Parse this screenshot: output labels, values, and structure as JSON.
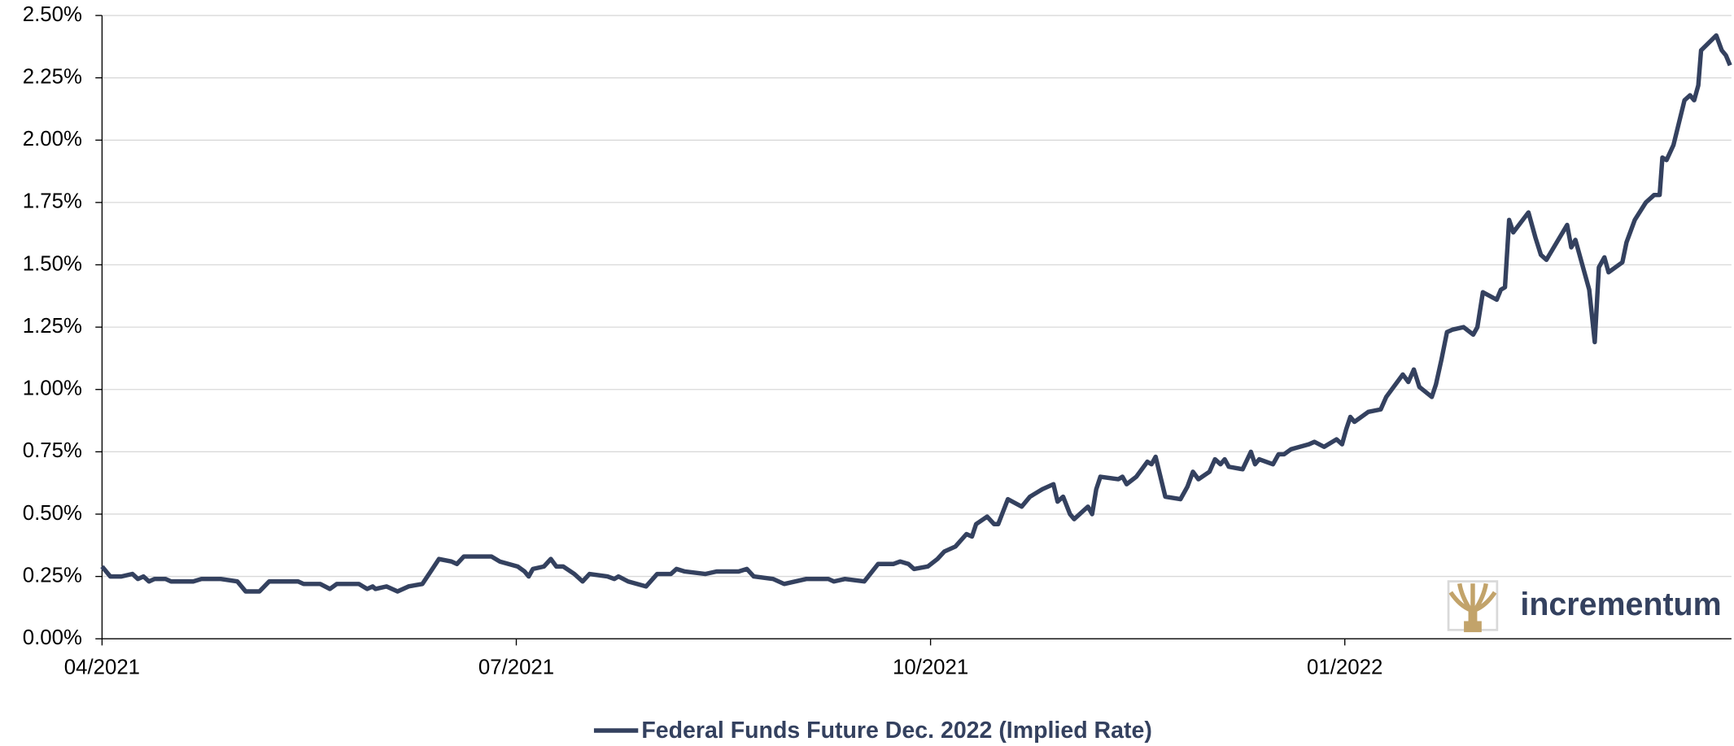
{
  "chart_data": {
    "type": "line",
    "x": [
      0.0,
      0.06,
      0.14,
      0.22,
      0.26,
      0.3,
      0.34,
      0.38,
      0.46,
      0.5,
      0.54,
      0.66,
      0.72,
      0.86,
      0.98,
      1.04,
      1.14,
      1.21,
      1.42,
      1.46,
      1.58,
      1.65,
      1.7,
      1.86,
      1.92,
      1.96,
      1.98,
      2.06,
      2.14,
      2.22,
      2.32,
      2.38,
      2.44,
      2.53,
      2.57,
      2.62,
      2.7,
      2.82,
      2.88,
      3.01,
      3.06,
      3.09,
      3.12,
      3.2,
      3.25,
      3.29,
      3.34,
      3.42,
      3.48,
      3.53,
      3.66,
      3.71,
      3.74,
      3.81,
      3.94,
      4.02,
      4.12,
      4.16,
      4.22,
      4.37,
      4.45,
      4.61,
      4.67,
      4.72,
      4.86,
      4.94,
      5.1,
      5.16,
      5.26,
      5.3,
      5.38,
      5.52,
      5.62,
      5.73,
      5.78,
      5.84,
      5.88,
      5.98,
      6.05,
      6.1,
      6.18,
      6.26,
      6.3,
      6.33,
      6.41,
      6.46,
      6.49,
      6.56,
      6.66,
      6.72,
      6.81,
      6.89,
      6.92,
      6.96,
      7.01,
      7.04,
      7.1,
      7.14,
      7.17,
      7.2,
      7.23,
      7.36,
      7.39,
      7.42,
      7.49,
      7.57,
      7.6,
      7.63,
      7.7,
      7.81,
      7.86,
      7.9,
      7.94,
      8.02,
      8.06,
      8.1,
      8.13,
      8.16,
      8.26,
      8.32,
      8.35,
      8.38,
      8.48,
      8.52,
      8.56,
      8.61,
      8.74,
      8.78,
      8.85,
      8.94,
      8.98,
      9.01,
      9.04,
      9.07,
      9.17,
      9.26,
      9.3,
      9.42,
      9.46,
      9.5,
      9.54,
      9.63,
      9.66,
      9.7,
      9.74,
      9.78,
      9.86,
      9.93,
      9.96,
      10.0,
      10.1,
      10.13,
      10.16,
      10.19,
      10.22,
      10.33,
      10.38,
      10.42,
      10.46,
      10.61,
      10.64,
      10.67,
      10.77,
      10.81,
      10.84,
      10.88,
      10.91,
      11.01,
      11.04,
      11.1,
      11.18,
      11.24,
      11.28,
      11.3,
      11.33,
      11.38,
      11.46,
      11.5,
      11.53,
      11.56,
      11.58,
      11.69,
      11.73,
      11.76,
      11.79
    ],
    "series": [
      {
        "name": "Federal Funds Future Dec. 2022 (Implied Rate)",
        "color": "#34415f",
        "values": [
          0.29,
          0.25,
          0.25,
          0.26,
          0.24,
          0.25,
          0.23,
          0.24,
          0.24,
          0.23,
          0.23,
          0.23,
          0.24,
          0.24,
          0.23,
          0.19,
          0.19,
          0.23,
          0.23,
          0.22,
          0.22,
          0.2,
          0.22,
          0.22,
          0.2,
          0.21,
          0.2,
          0.21,
          0.19,
          0.21,
          0.22,
          0.27,
          0.32,
          0.31,
          0.3,
          0.33,
          0.33,
          0.33,
          0.31,
          0.29,
          0.27,
          0.25,
          0.28,
          0.29,
          0.32,
          0.29,
          0.29,
          0.26,
          0.23,
          0.26,
          0.25,
          0.24,
          0.25,
          0.23,
          0.21,
          0.26,
          0.26,
          0.28,
          0.27,
          0.26,
          0.27,
          0.27,
          0.28,
          0.25,
          0.24,
          0.22,
          0.24,
          0.24,
          0.24,
          0.23,
          0.24,
          0.23,
          0.3,
          0.3,
          0.31,
          0.3,
          0.28,
          0.29,
          0.32,
          0.35,
          0.37,
          0.42,
          0.41,
          0.46,
          0.49,
          0.46,
          0.46,
          0.56,
          0.53,
          0.57,
          0.6,
          0.62,
          0.55,
          0.57,
          0.5,
          0.48,
          0.51,
          0.53,
          0.5,
          0.6,
          0.65,
          0.64,
          0.65,
          0.62,
          0.65,
          0.71,
          0.7,
          0.73,
          0.57,
          0.56,
          0.61,
          0.67,
          0.64,
          0.67,
          0.72,
          0.7,
          0.72,
          0.69,
          0.68,
          0.75,
          0.7,
          0.72,
          0.7,
          0.74,
          0.74,
          0.76,
          0.78,
          0.79,
          0.77,
          0.8,
          0.78,
          0.84,
          0.89,
          0.87,
          0.91,
          0.92,
          0.97,
          1.06,
          1.03,
          1.08,
          1.01,
          0.97,
          1.02,
          1.12,
          1.23,
          1.24,
          1.25,
          1.22,
          1.25,
          1.39,
          1.36,
          1.4,
          1.41,
          1.68,
          1.63,
          1.71,
          1.61,
          1.54,
          1.52,
          1.66,
          1.57,
          1.6,
          1.4,
          1.19,
          1.49,
          1.53,
          1.47,
          1.51,
          1.59,
          1.68,
          1.75,
          1.78,
          1.78,
          1.93,
          1.92,
          1.98,
          2.16,
          2.18,
          2.16,
          2.22,
          2.36,
          2.42,
          2.36,
          2.34,
          2.3
        ]
      }
    ],
    "xlim": [
      0,
      11.8
    ],
    "xticks": [
      {
        "value": 0,
        "label": "04/2021"
      },
      {
        "value": 3,
        "label": "07/2021"
      },
      {
        "value": 6,
        "label": "10/2021"
      },
      {
        "value": 9,
        "label": "01/2022"
      }
    ],
    "ylim": [
      0,
      2.5
    ],
    "yticks": [
      {
        "value": 0,
        "label": "0.00%"
      },
      {
        "value": 0.25,
        "label": "0.25%"
      },
      {
        "value": 0.5,
        "label": "0.50%"
      },
      {
        "value": 0.75,
        "label": "0.75%"
      },
      {
        "value": 1,
        "label": "1.00%"
      },
      {
        "value": 1.25,
        "label": "1.25%"
      },
      {
        "value": 1.5,
        "label": "1.50%"
      },
      {
        "value": 1.75,
        "label": "1.75%"
      },
      {
        "value": 2,
        "label": "2.00%"
      },
      {
        "value": 2.25,
        "label": "2.25%"
      },
      {
        "value": 2.5,
        "label": "2.50%"
      }
    ],
    "grid": true,
    "legend": "bottom",
    "watermark": "incrementum"
  }
}
